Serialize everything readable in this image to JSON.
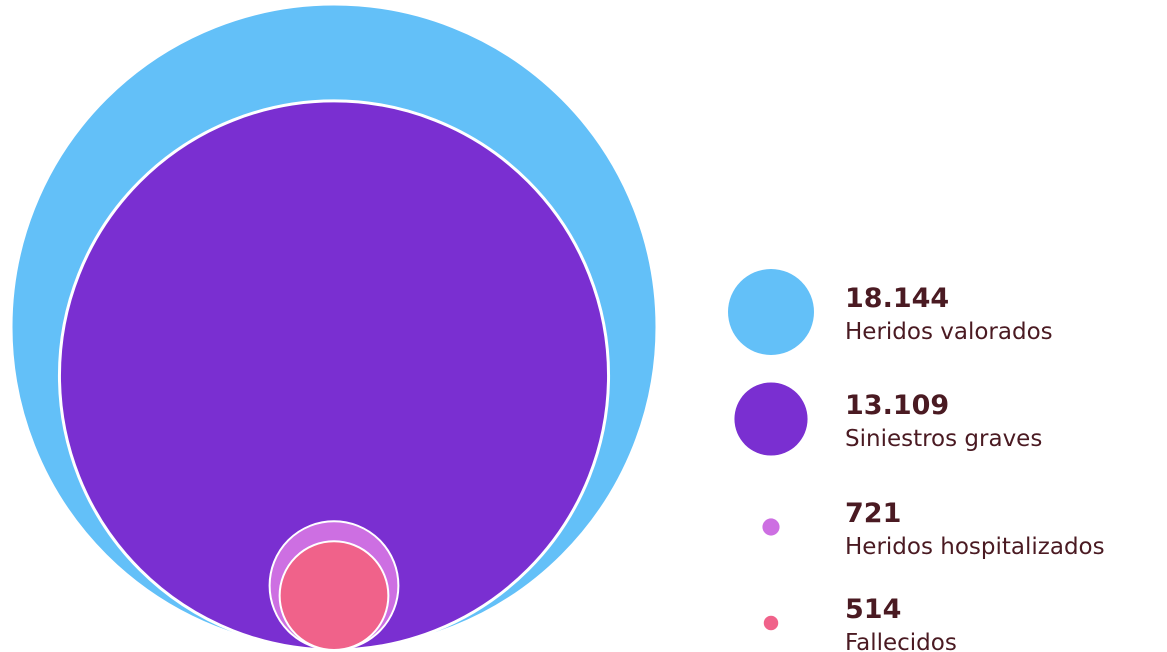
{
  "chart_data": {
    "type": "bubble",
    "layout": "nested",
    "series": [
      {
        "name": "Heridos valorados",
        "value": 18144,
        "value_label": "18.144",
        "color": "#63c0f8"
      },
      {
        "name": "Siniestros graves",
        "value": 13109,
        "value_label": "13.109",
        "color": "#7a2fd1"
      },
      {
        "name": "Heridos hospitalizados",
        "value": 721,
        "value_label": "721",
        "color": "#cd6fe2"
      },
      {
        "name": "Fallecidos",
        "value": 514,
        "value_label": "514",
        "color": "#f0628a"
      }
    ],
    "legend": {
      "position": "right"
    },
    "grid": false
  }
}
